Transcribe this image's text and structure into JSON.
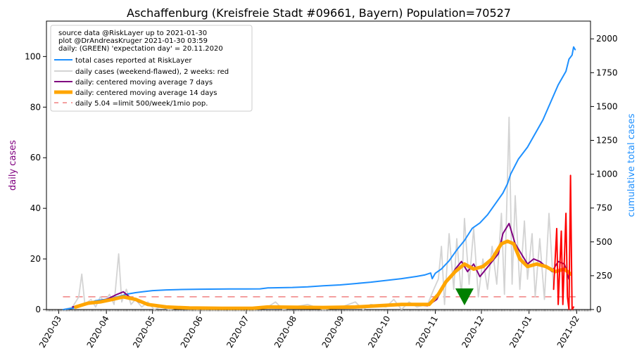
{
  "chart_data": {
    "type": "line",
    "title": "Aschaffenburg (Kreisfreie Stadt #09661, Bayern) Population=70527",
    "y_left_label": "daily cases",
    "y_right_label": "cumulative total cases",
    "y_left_lim": [
      0,
      114
    ],
    "y_right_lim": [
      0,
      2131
    ],
    "y_left_ticks": [
      0,
      20,
      40,
      60,
      80,
      100
    ],
    "y_right_ticks": [
      0,
      250,
      500,
      750,
      1000,
      1250,
      1500,
      1750,
      2000
    ],
    "x_range": [
      "2020-02-22",
      "2021-02-10"
    ],
    "x_ticks": [
      "2020-03",
      "2020-04",
      "2020-05",
      "2020-06",
      "2020-07",
      "2020-08",
      "2020-09",
      "2020-10",
      "2020-11",
      "2020-12",
      "2021-01",
      "2021-02"
    ],
    "legend": {
      "placement": "top-left",
      "info_lines": [
        "source data @RiskLayer up to 2021-01-30",
        "plot @DrAndreasKruger 2021-01-30 03:59",
        "daily: (GREEN) 'expectation day' = 20.11.2020"
      ],
      "entries": [
        {
          "label": "total cases reported at RiskLayer",
          "color": "#1e90ff",
          "style": "solid"
        },
        {
          "label": "daily cases (weekend-flawed), 2 weeks: red",
          "color": "#d3d3d3",
          "style": "solid"
        },
        {
          "label": "daily: centered moving average 7 days",
          "color": "#800080",
          "style": "solid"
        },
        {
          "label": "daily: centered moving average 14 days",
          "color": "#ffa500",
          "style": "thick"
        },
        {
          "label": "daily 5.04 =limit 500/week/1mio pop.",
          "color": "#f08080",
          "style": "dashed"
        }
      ]
    },
    "series": [
      {
        "name": "total cases reported at RiskLayer",
        "axis": "right",
        "color": "#1e90ff",
        "points": [
          [
            "2020-03-04",
            0
          ],
          [
            "2020-03-10",
            10
          ],
          [
            "2020-03-15",
            25
          ],
          [
            "2020-03-20",
            45
          ],
          [
            "2020-03-25",
            65
          ],
          [
            "2020-03-31",
            75
          ],
          [
            "2020-04-05",
            85
          ],
          [
            "2020-04-10",
            100
          ],
          [
            "2020-04-15",
            115
          ],
          [
            "2020-04-20",
            125
          ],
          [
            "2020-04-25",
            132
          ],
          [
            "2020-05-01",
            140
          ],
          [
            "2020-05-10",
            145
          ],
          [
            "2020-05-20",
            148
          ],
          [
            "2020-06-01",
            150
          ],
          [
            "2020-06-20",
            152
          ],
          [
            "2020-07-01",
            152
          ],
          [
            "2020-07-10",
            153
          ],
          [
            "2020-07-15",
            160
          ],
          [
            "2020-07-31",
            163
          ],
          [
            "2020-08-10",
            168
          ],
          [
            "2020-08-20",
            175
          ],
          [
            "2020-08-31",
            182
          ],
          [
            "2020-09-10",
            192
          ],
          [
            "2020-09-20",
            202
          ],
          [
            "2020-09-30",
            215
          ],
          [
            "2020-10-10",
            228
          ],
          [
            "2020-10-20",
            245
          ],
          [
            "2020-10-25",
            255
          ],
          [
            "2020-10-29",
            270
          ],
          [
            "2020-10-30",
            228
          ],
          [
            "2020-11-01",
            268
          ],
          [
            "2020-11-05",
            300
          ],
          [
            "2020-11-10",
            360
          ],
          [
            "2020-11-15",
            440
          ],
          [
            "2020-11-20",
            510
          ],
          [
            "2020-11-25",
            600
          ],
          [
            "2020-11-30",
            640
          ],
          [
            "2020-12-05",
            700
          ],
          [
            "2020-12-10",
            780
          ],
          [
            "2020-12-15",
            860
          ],
          [
            "2020-12-18",
            930
          ],
          [
            "2020-12-20",
            1000
          ],
          [
            "2020-12-25",
            1110
          ],
          [
            "2020-12-31",
            1200
          ],
          [
            "2021-01-05",
            1300
          ],
          [
            "2021-01-10",
            1400
          ],
          [
            "2021-01-15",
            1530
          ],
          [
            "2021-01-20",
            1660
          ],
          [
            "2021-01-25",
            1760
          ],
          [
            "2021-01-27",
            1850
          ],
          [
            "2021-01-29",
            1880
          ],
          [
            "2021-01-30",
            1940
          ],
          [
            "2021-01-31",
            1920
          ]
        ]
      },
      {
        "name": "daily cases (weekend-flawed), 2 weeks: red",
        "axis": "left",
        "color": "#d3d3d3",
        "red_color": "#ff0000",
        "red_from": "2021-01-17",
        "points": [
          [
            "2020-03-04",
            0
          ],
          [
            "2020-03-10",
            1
          ],
          [
            "2020-03-14",
            5
          ],
          [
            "2020-03-16",
            14
          ],
          [
            "2020-03-18",
            2
          ],
          [
            "2020-03-22",
            4
          ],
          [
            "2020-03-25",
            1
          ],
          [
            "2020-03-28",
            5
          ],
          [
            "2020-03-31",
            3
          ],
          [
            "2020-04-03",
            6
          ],
          [
            "2020-04-06",
            2
          ],
          [
            "2020-04-09",
            22
          ],
          [
            "2020-04-11",
            3
          ],
          [
            "2020-04-14",
            8
          ],
          [
            "2020-04-17",
            2
          ],
          [
            "2020-04-20",
            4
          ],
          [
            "2020-04-24",
            1
          ],
          [
            "2020-04-28",
            3
          ],
          [
            "2020-05-02",
            0
          ],
          [
            "2020-05-06",
            1
          ],
          [
            "2020-05-12",
            0
          ],
          [
            "2020-05-20",
            1
          ],
          [
            "2020-06-01",
            0
          ],
          [
            "2020-06-20",
            0
          ],
          [
            "2020-07-01",
            0
          ],
          [
            "2020-07-15",
            1
          ],
          [
            "2020-07-20",
            3
          ],
          [
            "2020-07-25",
            0
          ],
          [
            "2020-08-01",
            1
          ],
          [
            "2020-08-10",
            2
          ],
          [
            "2020-08-20",
            0
          ],
          [
            "2020-09-01",
            1
          ],
          [
            "2020-09-10",
            3
          ],
          [
            "2020-09-15",
            0
          ],
          [
            "2020-09-20",
            2
          ],
          [
            "2020-09-30",
            1
          ],
          [
            "2020-10-05",
            4
          ],
          [
            "2020-10-10",
            0
          ],
          [
            "2020-10-15",
            3
          ],
          [
            "2020-10-20",
            1
          ],
          [
            "2020-10-27",
            2
          ],
          [
            "2020-10-31",
            8
          ],
          [
            "2020-11-03",
            12
          ],
          [
            "2020-11-05",
            25
          ],
          [
            "2020-11-07",
            2
          ],
          [
            "2020-11-10",
            30
          ],
          [
            "2020-11-13",
            8
          ],
          [
            "2020-11-15",
            28
          ],
          [
            "2020-11-18",
            5
          ],
          [
            "2020-11-20",
            36
          ],
          [
            "2020-11-23",
            10
          ],
          [
            "2020-11-26",
            32
          ],
          [
            "2020-11-29",
            5
          ],
          [
            "2020-12-02",
            20
          ],
          [
            "2020-12-05",
            8
          ],
          [
            "2020-12-08",
            25
          ],
          [
            "2020-12-11",
            10
          ],
          [
            "2020-12-14",
            38
          ],
          [
            "2020-12-16",
            6
          ],
          [
            "2020-12-19",
            76
          ],
          [
            "2020-12-21",
            10
          ],
          [
            "2020-12-23",
            45
          ],
          [
            "2020-12-26",
            8
          ],
          [
            "2020-12-29",
            35
          ],
          [
            "2020-12-31",
            12
          ],
          [
            "2021-01-03",
            30
          ],
          [
            "2021-01-05",
            5
          ],
          [
            "2021-01-08",
            28
          ],
          [
            "2021-01-11",
            4
          ],
          [
            "2021-01-14",
            38
          ],
          [
            "2021-01-17",
            8
          ],
          [
            "2021-01-19",
            32
          ],
          [
            "2021-01-20",
            2
          ],
          [
            "2021-01-22",
            31
          ],
          [
            "2021-01-23",
            2
          ],
          [
            "2021-01-25",
            38
          ],
          [
            "2021-01-26",
            5
          ],
          [
            "2021-01-27",
            0
          ],
          [
            "2021-01-28",
            53
          ],
          [
            "2021-01-29",
            0
          ],
          [
            "2021-01-30",
            1
          ]
        ]
      },
      {
        "name": "daily: centered moving average 7 days",
        "axis": "left",
        "color": "#800080",
        "points": [
          [
            "2020-03-10",
            1
          ],
          [
            "2020-03-18",
            2
          ],
          [
            "2020-03-25",
            3
          ],
          [
            "2020-04-01",
            4
          ],
          [
            "2020-04-08",
            6
          ],
          [
            "2020-04-12",
            7
          ],
          [
            "2020-04-16",
            5
          ],
          [
            "2020-04-22",
            3
          ],
          [
            "2020-05-01",
            1.5
          ],
          [
            "2020-05-15",
            0.6
          ],
          [
            "2020-06-01",
            0.3
          ],
          [
            "2020-07-01",
            0.3
          ],
          [
            "2020-07-15",
            1
          ],
          [
            "2020-08-01",
            0.8
          ],
          [
            "2020-08-15",
            0.6
          ],
          [
            "2020-09-01",
            0.8
          ],
          [
            "2020-09-15",
            1.2
          ],
          [
            "2020-10-01",
            1.8
          ],
          [
            "2020-10-15",
            2.2
          ],
          [
            "2020-10-27",
            1.5
          ],
          [
            "2020-11-02",
            4
          ],
          [
            "2020-11-06",
            9
          ],
          [
            "2020-11-10",
            12
          ],
          [
            "2020-11-14",
            16
          ],
          [
            "2020-11-18",
            19
          ],
          [
            "2020-11-22",
            15
          ],
          [
            "2020-11-26",
            18
          ],
          [
            "2020-11-30",
            13
          ],
          [
            "2020-12-04",
            16
          ],
          [
            "2020-12-08",
            19
          ],
          [
            "2020-12-12",
            22
          ],
          [
            "2020-12-15",
            30
          ],
          [
            "2020-12-19",
            34
          ],
          [
            "2020-12-23",
            26
          ],
          [
            "2020-12-27",
            22
          ],
          [
            "2020-12-31",
            18
          ],
          [
            "2021-01-04",
            20
          ],
          [
            "2021-01-08",
            19
          ],
          [
            "2021-01-12",
            17
          ],
          [
            "2021-01-16",
            15
          ],
          [
            "2021-01-20",
            19
          ],
          [
            "2021-01-24",
            18
          ],
          [
            "2021-01-27",
            12
          ]
        ]
      },
      {
        "name": "daily: centered moving average 14 days",
        "axis": "left",
        "color": "#ffa500",
        "points": [
          [
            "2020-03-12",
            1
          ],
          [
            "2020-03-20",
            2.5
          ],
          [
            "2020-03-28",
            3
          ],
          [
            "2020-04-05",
            4
          ],
          [
            "2020-04-12",
            5
          ],
          [
            "2020-04-20",
            4
          ],
          [
            "2020-04-28",
            2
          ],
          [
            "2020-05-10",
            1
          ],
          [
            "2020-05-25",
            0.6
          ],
          [
            "2020-06-15",
            0.5
          ],
          [
            "2020-07-05",
            0.5
          ],
          [
            "2020-07-15",
            1
          ],
          [
            "2020-08-01",
            0.9
          ],
          [
            "2020-08-20",
            0.8
          ],
          [
            "2020-09-10",
            1
          ],
          [
            "2020-09-25",
            1.5
          ],
          [
            "2020-10-10",
            2
          ],
          [
            "2020-10-22",
            2
          ],
          [
            "2020-10-28",
            2
          ],
          [
            "2020-11-03",
            6
          ],
          [
            "2020-11-08",
            11
          ],
          [
            "2020-11-14",
            15
          ],
          [
            "2020-11-20",
            18
          ],
          [
            "2020-11-26",
            16
          ],
          [
            "2020-12-02",
            17
          ],
          [
            "2020-12-08",
            20
          ],
          [
            "2020-12-14",
            26
          ],
          [
            "2020-12-18",
            27
          ],
          [
            "2020-12-22",
            26
          ],
          [
            "2020-12-26",
            20
          ],
          [
            "2020-12-31",
            17
          ],
          [
            "2021-01-06",
            18
          ],
          [
            "2021-01-12",
            17
          ],
          [
            "2021-01-18",
            15
          ],
          [
            "2021-01-24",
            16
          ],
          [
            "2021-01-28",
            14
          ]
        ]
      },
      {
        "name": "daily 5.04 =limit 500/week/1mio pop.",
        "axis": "left",
        "color": "#f08080",
        "points": [
          [
            "2020-03-04",
            5.04
          ],
          [
            "2021-01-31",
            5.04
          ]
        ]
      }
    ],
    "marker": {
      "label": "expectation day",
      "date": "2020-11-20",
      "value": 5,
      "color": "#008000"
    }
  }
}
